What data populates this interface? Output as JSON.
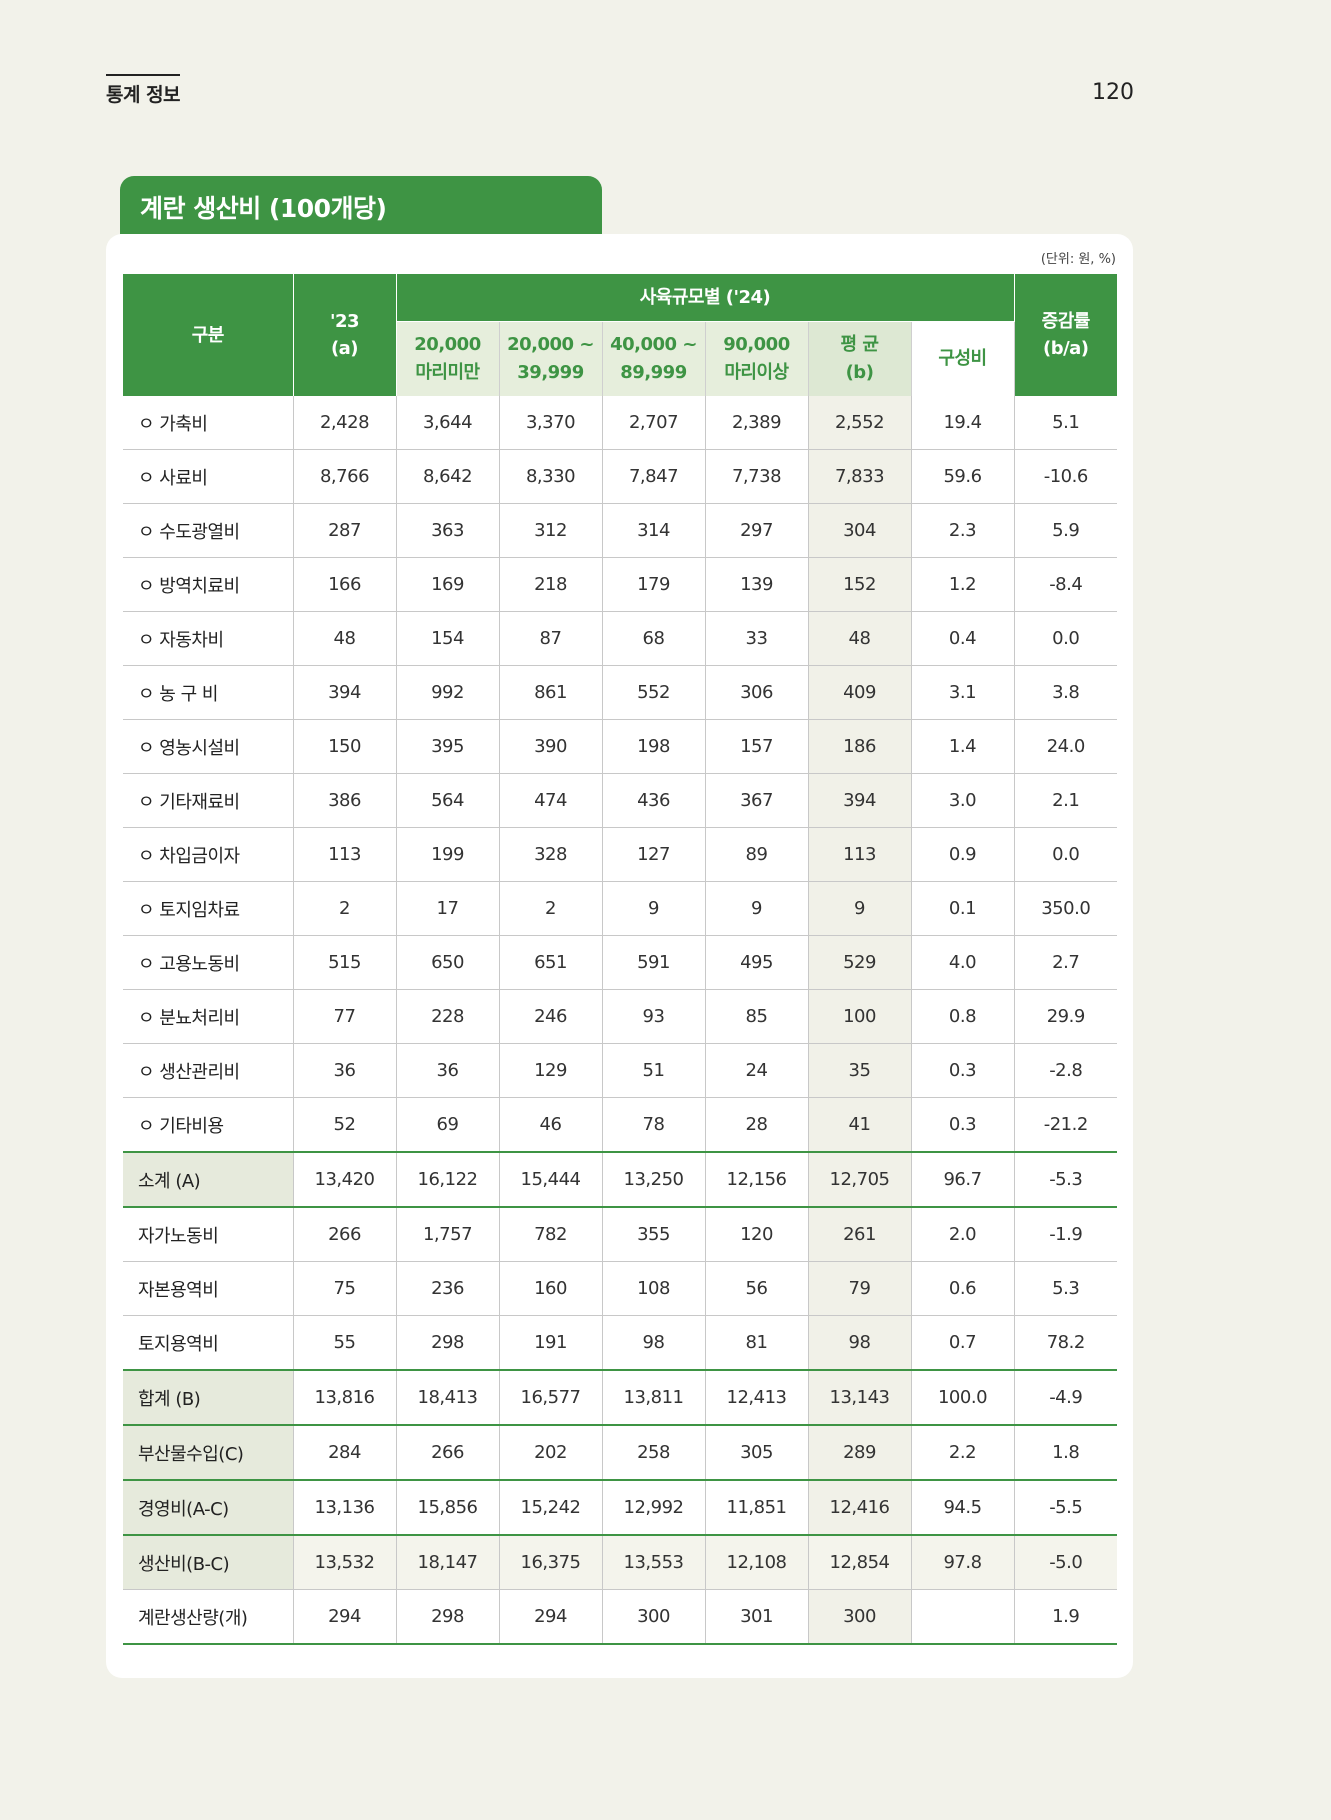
{
  "header": {
    "section_label": "통계 정보",
    "page_number": "120"
  },
  "title": "계란 생산비 (100개당)",
  "unit_note": "(단위: 원, %)",
  "table": {
    "col_label": "구분",
    "col_prev": "'23\n(a)",
    "group_label": "사육규모별 ('24)",
    "col_growth": "증감률\n(b/a)",
    "subcols": [
      "20,000\n마리미만",
      "20,000 ~\n39,999",
      "40,000 ~\n89,999",
      "90,000\n마리이상",
      "평 균\n(b)",
      "구성비"
    ],
    "rows": [
      {
        "label": "ㅇ 가축비",
        "cells": [
          "2,428",
          "3,644",
          "3,370",
          "2,707",
          "2,389",
          "2,552",
          "19.4",
          "5.1"
        ],
        "type": "item"
      },
      {
        "label": "ㅇ 사료비",
        "cells": [
          "8,766",
          "8,642",
          "8,330",
          "7,847",
          "7,738",
          "7,833",
          "59.6",
          "-10.6"
        ],
        "type": "item"
      },
      {
        "label": "ㅇ 수도광열비",
        "cells": [
          "287",
          "363",
          "312",
          "314",
          "297",
          "304",
          "2.3",
          "5.9"
        ],
        "type": "item"
      },
      {
        "label": "ㅇ 방역치료비",
        "cells": [
          "166",
          "169",
          "218",
          "179",
          "139",
          "152",
          "1.2",
          "-8.4"
        ],
        "type": "item"
      },
      {
        "label": "ㅇ 자동차비",
        "cells": [
          "48",
          "154",
          "87",
          "68",
          "33",
          "48",
          "0.4",
          "0.0"
        ],
        "type": "item"
      },
      {
        "label": "ㅇ 농 구 비",
        "cells": [
          "394",
          "992",
          "861",
          "552",
          "306",
          "409",
          "3.1",
          "3.8"
        ],
        "type": "item"
      },
      {
        "label": "ㅇ 영농시설비",
        "cells": [
          "150",
          "395",
          "390",
          "198",
          "157",
          "186",
          "1.4",
          "24.0"
        ],
        "type": "item"
      },
      {
        "label": "ㅇ 기타재료비",
        "cells": [
          "386",
          "564",
          "474",
          "436",
          "367",
          "394",
          "3.0",
          "2.1"
        ],
        "type": "item"
      },
      {
        "label": "ㅇ 차입금이자",
        "cells": [
          "113",
          "199",
          "328",
          "127",
          "89",
          "113",
          "0.9",
          "0.0"
        ],
        "type": "item"
      },
      {
        "label": "ㅇ 토지임차료",
        "cells": [
          "2",
          "17",
          "2",
          "9",
          "9",
          "9",
          "0.1",
          "350.0"
        ],
        "type": "item"
      },
      {
        "label": "ㅇ 고용노동비",
        "cells": [
          "515",
          "650",
          "651",
          "591",
          "495",
          "529",
          "4.0",
          "2.7"
        ],
        "type": "item"
      },
      {
        "label": "ㅇ 분뇨처리비",
        "cells": [
          "77",
          "228",
          "246",
          "93",
          "85",
          "100",
          "0.8",
          "29.9"
        ],
        "type": "item"
      },
      {
        "label": "ㅇ 생산관리비",
        "cells": [
          "36",
          "36",
          "129",
          "51",
          "24",
          "35",
          "0.3",
          "-2.8"
        ],
        "type": "item"
      },
      {
        "label": "ㅇ 기타비용",
        "cells": [
          "52",
          "69",
          "46",
          "78",
          "28",
          "41",
          "0.3",
          "-21.2"
        ],
        "type": "before-sum"
      },
      {
        "label": "소계 (A)",
        "cells": [
          "13,420",
          "16,122",
          "15,444",
          "13,250",
          "12,156",
          "12,705",
          "96.7",
          "-5.3"
        ],
        "type": "sum"
      },
      {
        "label": "자가노동비",
        "cells": [
          "266",
          "1,757",
          "782",
          "355",
          "120",
          "261",
          "2.0",
          "-1.9"
        ],
        "type": "item"
      },
      {
        "label": "자본용역비",
        "cells": [
          "75",
          "236",
          "160",
          "108",
          "56",
          "79",
          "0.6",
          "5.3"
        ],
        "type": "item"
      },
      {
        "label": "토지용역비",
        "cells": [
          "55",
          "298",
          "191",
          "98",
          "81",
          "98",
          "0.7",
          "78.2"
        ],
        "type": "before-sum"
      },
      {
        "label": "합계 (B)",
        "cells": [
          "13,816",
          "18,413",
          "16,577",
          "13,811",
          "12,413",
          "13,143",
          "100.0",
          "-4.9"
        ],
        "type": "sum"
      },
      {
        "label": "부산물수입(C)",
        "cells": [
          "284",
          "266",
          "202",
          "258",
          "305",
          "289",
          "2.2",
          "1.8"
        ],
        "type": "sum"
      },
      {
        "label": "경영비(A-C)",
        "cells": [
          "13,136",
          "15,856",
          "15,242",
          "12,992",
          "11,851",
          "12,416",
          "94.5",
          "-5.5"
        ],
        "type": "sum"
      },
      {
        "label": "생산비(B-C)",
        "cells": [
          "13,532",
          "18,147",
          "16,375",
          "13,553",
          "12,108",
          "12,854",
          "97.8",
          "-5.0"
        ],
        "type": "shade"
      },
      {
        "label": "계란생산량(개)",
        "cells": [
          "294",
          "298",
          "294",
          "300",
          "301",
          "300",
          "",
          "1.9"
        ],
        "type": "final"
      }
    ]
  }
}
